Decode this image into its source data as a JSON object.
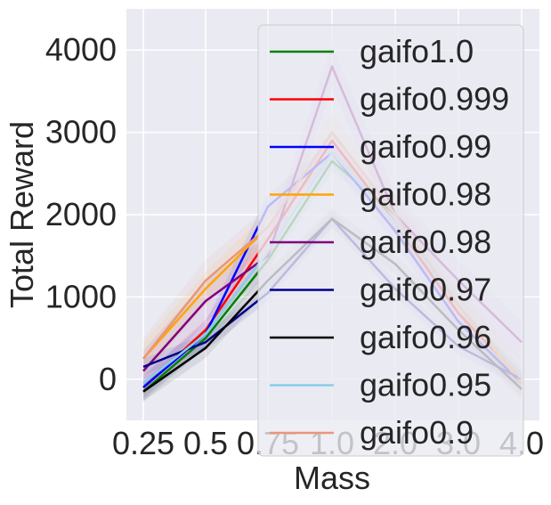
{
  "chart_data": {
    "type": "line",
    "title": "",
    "xlabel": "Mass",
    "ylabel": "Total Reward",
    "categories": [
      "0.25",
      "0.5",
      "0.75",
      "1.0",
      "2.0",
      "3.0",
      "4.0"
    ],
    "yticks": [
      "0",
      "1000",
      "2000",
      "3000",
      "4000"
    ],
    "ylim": [
      -500,
      4500
    ],
    "grid": true,
    "legend_position": "upper right",
    "style": {
      "background": "#eaeaf2",
      "grid_color": "#ffffff"
    },
    "series": [
      {
        "name": "gaifo1.0",
        "color": "#008000",
        "values": [
          -150,
          500,
          1450,
          2650,
          2000,
          900,
          -50
        ],
        "band": 120
      },
      {
        "name": "gaifo0.999",
        "color": "#ff0000",
        "values": [
          -100,
          600,
          1700,
          2900,
          1900,
          800,
          0
        ],
        "band": 130
      },
      {
        "name": "gaifo0.99",
        "color": "#0000ff",
        "values": [
          -100,
          550,
          2100,
          2750,
          1800,
          700,
          -50
        ],
        "band": 150
      },
      {
        "name": "gaifo0.98",
        "color": "#ffa500",
        "values": [
          250,
          1100,
          1850,
          3000,
          2000,
          900,
          -50
        ],
        "band": 200
      },
      {
        "name": "gaifo0.98",
        "color": "#800080",
        "values": [
          100,
          950,
          1500,
          3800,
          2000,
          1200,
          450
        ],
        "band": 250
      },
      {
        "name": "gaifo0.97",
        "color": "#00008b",
        "values": [
          150,
          450,
          1050,
          1950,
          1100,
          400,
          0
        ],
        "band": 100
      },
      {
        "name": "gaifo0.96",
        "color": "#000000",
        "values": [
          -150,
          380,
          1200,
          1950,
          1400,
          600,
          -120
        ],
        "band": 120
      },
      {
        "name": "gaifo0.95",
        "color": "#87ceeb",
        "values": [
          -50,
          550,
          1550,
          2750,
          1900,
          900,
          50
        ],
        "band": 130
      },
      {
        "name": "gaifo0.9",
        "color": "#e9967a",
        "values": [
          250,
          1200,
          1850,
          3000,
          2000,
          900,
          0
        ],
        "band": 250
      }
    ]
  }
}
